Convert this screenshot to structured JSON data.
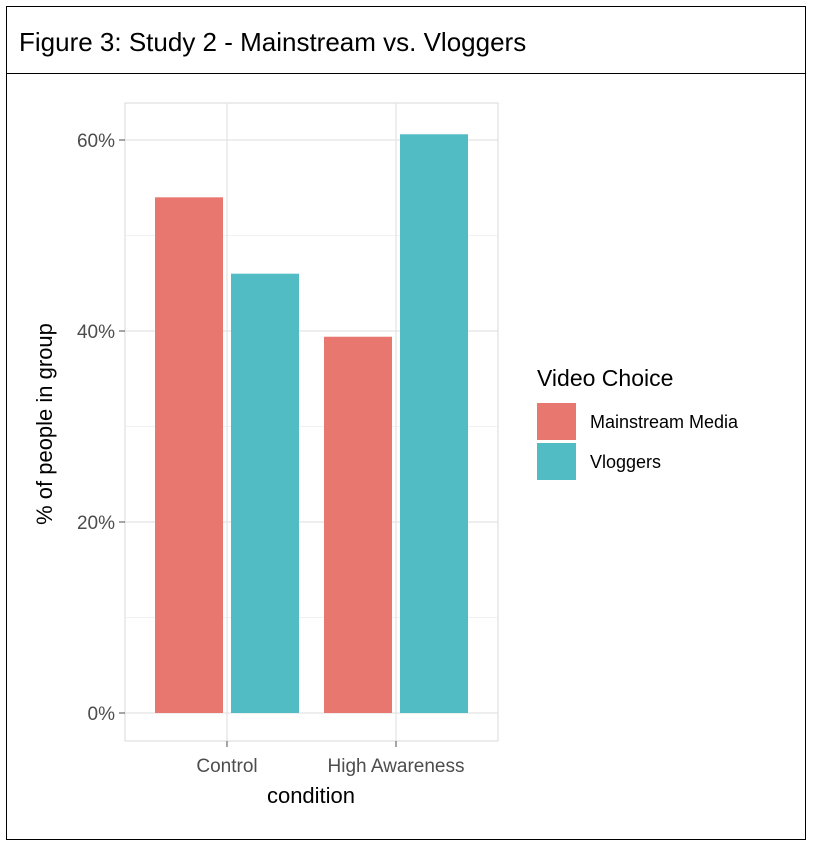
{
  "figure": {
    "title": "Figure 3: Study 2 - Mainstream vs. Vloggers"
  },
  "chart_data": {
    "type": "bar",
    "categories": [
      "Control",
      "High Awareness"
    ],
    "series": [
      {
        "name": "Mainstream Media",
        "color": "#e8776f",
        "values": [
          54,
          39.4
        ]
      },
      {
        "name": "Vloggers",
        "color": "#51bcc3",
        "values": [
          46,
          60.6
        ]
      }
    ],
    "xlabel": "condition",
    "ylabel": "% of people in group",
    "ylim": [
      0,
      62
    ],
    "yticks": [
      0,
      20,
      40,
      60
    ],
    "ytick_labels": [
      "0%",
      "20%",
      "40%",
      "60%"
    ],
    "legend_title": "Video Choice",
    "legend_position": "right",
    "grid": true
  }
}
